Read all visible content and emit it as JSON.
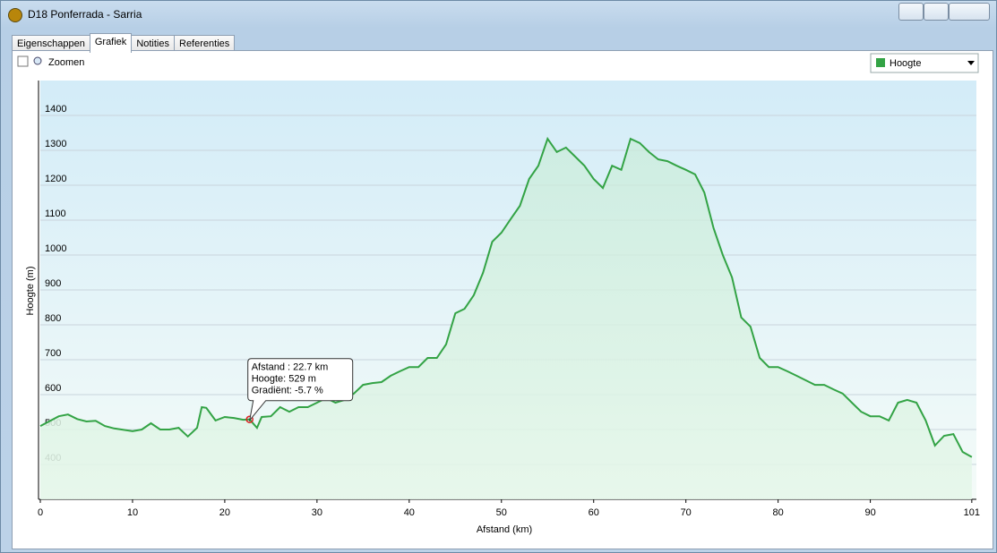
{
  "window": {
    "title": "D18 Ponferrada - Sarria"
  },
  "tabs": [
    "Eigenschappen",
    "Grafiek",
    "Notities",
    "Referenties"
  ],
  "active_tab": 1,
  "toolbar": {
    "zoom_label": "Zoomen"
  },
  "chart_data": {
    "type": "line",
    "xlabel": "Afstand  (km)",
    "ylabel": "Hoogte (m)",
    "x": [
      0,
      2,
      3,
      4,
      5,
      6,
      7,
      8,
      10,
      11,
      12,
      13,
      14,
      15,
      16,
      17,
      17.5,
      18,
      19,
      20,
      21,
      22,
      22.7,
      23.5,
      24,
      25,
      26,
      27,
      28,
      29,
      30,
      31,
      32,
      33,
      34,
      35,
      36,
      37,
      38,
      39,
      40,
      41,
      42,
      43,
      44,
      45,
      46,
      47,
      48,
      49,
      50,
      51,
      52,
      53,
      54,
      55,
      56,
      57,
      58,
      59,
      60,
      61,
      62,
      63,
      64,
      65,
      66,
      67,
      68,
      69,
      70,
      71,
      72,
      73,
      74,
      75,
      76,
      77,
      78,
      79,
      80,
      81,
      82,
      83,
      84,
      85,
      86,
      87,
      88,
      89,
      90,
      91,
      92,
      93,
      94,
      95,
      96,
      97,
      98,
      99,
      100,
      101
    ],
    "series": [
      {
        "name": "Hoogte",
        "color": "#33a345",
        "values": [
          510,
          538,
          543,
          530,
          523,
          525,
          510,
          503,
          495,
          500,
          518,
          500,
          500,
          505,
          480,
          505,
          564,
          562,
          526,
          536,
          533,
          528,
          529,
          505,
          536,
          538,
          564,
          551,
          564,
          564,
          577,
          590,
          577,
          585,
          603,
          628,
          633,
          636,
          654,
          667,
          679,
          679,
          705,
          705,
          744,
          833,
          846,
          885,
          949,
          1038,
          1064,
          1103,
          1141,
          1218,
          1256,
          1333,
          1295,
          1308,
          1282,
          1256,
          1218,
          1192,
          1256,
          1244,
          1333,
          1321,
          1295,
          1274,
          1269,
          1256,
          1244,
          1231,
          1179,
          1077,
          1000,
          936,
          821,
          795,
          705,
          679,
          679,
          667,
          654,
          641,
          628,
          628,
          615,
          603,
          577,
          551,
          538,
          538,
          526,
          577,
          585,
          577,
          526,
          454,
          482,
          487,
          436,
          421
        ]
      }
    ],
    "xlim": [
      0,
      101.5
    ],
    "xticks": [
      0,
      10,
      20,
      30,
      40,
      50,
      60,
      70,
      80,
      90,
      101
    ],
    "ylim": [
      300,
      1500
    ],
    "yticks": [
      400,
      500,
      600,
      700,
      800,
      900,
      1000,
      1100,
      1200,
      1300,
      1400
    ],
    "grid": true,
    "annotation": {
      "x": 22.7,
      "y": 529,
      "lines": [
        "Afstand  : 22.7 km",
        "Hoogte: 529 m",
        "Gradiënt: -5.7 %"
      ]
    }
  }
}
